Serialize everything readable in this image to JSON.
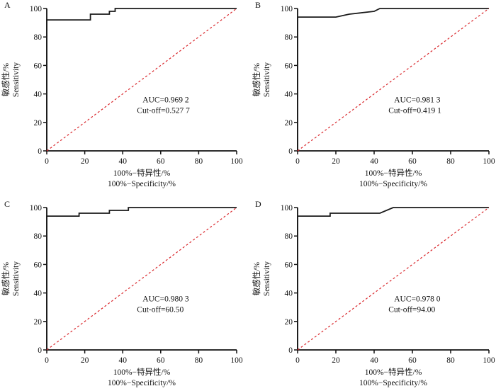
{
  "chart_data": [
    {
      "type": "line",
      "panel": "A",
      "xlabel_cn": "100%−特异性/%",
      "xlabel": "100%−Specificity/%",
      "ylabel_cn": "敏感性/%",
      "ylabel": "Sensitivity",
      "xlim": [
        0,
        100
      ],
      "ylim": [
        0,
        100
      ],
      "xticks": [
        0,
        20,
        40,
        60,
        80,
        100
      ],
      "yticks": [
        0,
        20,
        40,
        60,
        80,
        100
      ],
      "grid": false,
      "annotation": [
        "AUC=0.969 2",
        "Cut-off=0.527 7"
      ],
      "series": [
        {
          "name": "ROC",
          "color": "#1a1a1a",
          "style": "solid",
          "x": [
            0,
            0,
            23,
            23,
            33,
            33,
            36,
            36,
            100
          ],
          "y": [
            0,
            92,
            92,
            96,
            96,
            98,
            98,
            100,
            100
          ]
        },
        {
          "name": "Reference",
          "color": "#d9262b",
          "style": "dashed",
          "x": [
            0,
            100
          ],
          "y": [
            0,
            100
          ]
        }
      ]
    },
    {
      "type": "line",
      "panel": "B",
      "xlabel_cn": "100%−特异性/%",
      "xlabel": "100%−Specificity/%",
      "ylabel_cn": "敏感性/%",
      "ylabel": "Sensitivity",
      "xlim": [
        0,
        100
      ],
      "ylim": [
        0,
        100
      ],
      "xticks": [
        0,
        20,
        40,
        60,
        80,
        100
      ],
      "yticks": [
        0,
        20,
        40,
        60,
        80,
        100
      ],
      "grid": false,
      "annotation": [
        "AUC=0.981 3",
        "Cut-off=0.419 1"
      ],
      "series": [
        {
          "name": "ROC",
          "color": "#1a1a1a",
          "style": "solid",
          "x": [
            0,
            0,
            20,
            27,
            40,
            43,
            100
          ],
          "y": [
            0,
            94,
            94,
            96,
            98,
            100,
            100
          ]
        },
        {
          "name": "Reference",
          "color": "#d9262b",
          "style": "dashed",
          "x": [
            0,
            100
          ],
          "y": [
            0,
            100
          ]
        }
      ]
    },
    {
      "type": "line",
      "panel": "C",
      "xlabel_cn": "100%−特异性/%",
      "xlabel": "100%−Specificity/%",
      "ylabel_cn": "敏感性/%",
      "ylabel": "Sensitivity",
      "xlim": [
        0,
        100
      ],
      "ylim": [
        0,
        100
      ],
      "xticks": [
        0,
        20,
        40,
        60,
        80,
        100
      ],
      "yticks": [
        0,
        20,
        40,
        60,
        80,
        100
      ],
      "grid": false,
      "annotation": [
        "AUC=0.980 3",
        "Cut-off=60.50"
      ],
      "series": [
        {
          "name": "ROC",
          "color": "#1a1a1a",
          "style": "solid",
          "x": [
            0,
            0,
            17,
            17,
            33,
            33,
            43,
            43,
            100
          ],
          "y": [
            0,
            94,
            94,
            96,
            96,
            98,
            98,
            100,
            100
          ]
        },
        {
          "name": "Reference",
          "color": "#d9262b",
          "style": "dashed",
          "x": [
            0,
            100
          ],
          "y": [
            0,
            100
          ]
        }
      ]
    },
    {
      "type": "line",
      "panel": "D",
      "xlabel_cn": "100%−特异性/%",
      "xlabel": "100%−Specificity/%",
      "ylabel_cn": "敏感性/%",
      "ylabel": "Sensitivity",
      "xlim": [
        0,
        100
      ],
      "ylim": [
        0,
        100
      ],
      "xticks": [
        0,
        20,
        40,
        60,
        80,
        100
      ],
      "yticks": [
        0,
        20,
        40,
        60,
        80,
        100
      ],
      "grid": false,
      "annotation": [
        "AUC=0.978 0",
        "Cut-off=94.00"
      ],
      "series": [
        {
          "name": "ROC",
          "color": "#1a1a1a",
          "style": "solid",
          "x": [
            0,
            0,
            17,
            17,
            43,
            50,
            100
          ],
          "y": [
            0,
            94,
            94,
            96,
            96,
            100,
            100
          ]
        },
        {
          "name": "Reference",
          "color": "#d9262b",
          "style": "dashed",
          "x": [
            0,
            100
          ],
          "y": [
            0,
            100
          ]
        }
      ]
    }
  ]
}
